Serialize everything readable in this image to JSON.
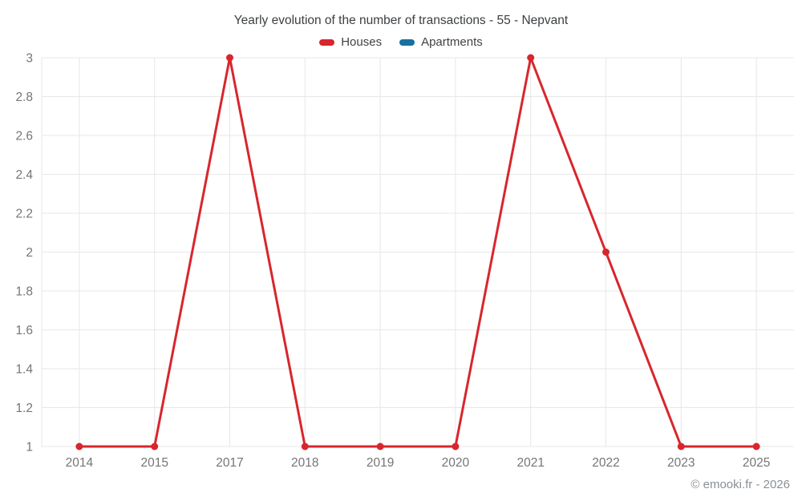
{
  "chart": {
    "title": "Yearly evolution of the number of transactions - 55 - Nepvant",
    "footer": "© emooki.fr - 2026"
  },
  "chart_data": {
    "type": "line",
    "title": "Yearly evolution of the number of transactions - 55 - Nepvant",
    "categories": [
      "2014",
      "2015",
      "2017",
      "2018",
      "2019",
      "2020",
      "2021",
      "2022",
      "2023",
      "2025"
    ],
    "series": [
      {
        "name": "Houses",
        "color": "#d8262d",
        "values": [
          1,
          1,
          3,
          1,
          1,
          1,
          3,
          2,
          1,
          1
        ]
      },
      {
        "name": "Apartments",
        "color": "#17719f",
        "values": [
          null,
          null,
          null,
          null,
          null,
          null,
          null,
          null,
          null,
          null
        ]
      }
    ],
    "xlabel": "",
    "ylabel": "",
    "ylim": [
      1,
      3
    ],
    "ytick_step": 0.2,
    "ytick_labels": [
      "1",
      "1.2",
      "1.4",
      "1.6",
      "1.8",
      "2",
      "2.2",
      "2.4",
      "2.6",
      "2.8",
      "3"
    ],
    "grid": true,
    "legend_position": "top"
  },
  "colors": {
    "grid": "#e7e7e7",
    "tick_label": "#757575",
    "title_text": "#3c4043",
    "footer_text": "#8a8f94"
  }
}
